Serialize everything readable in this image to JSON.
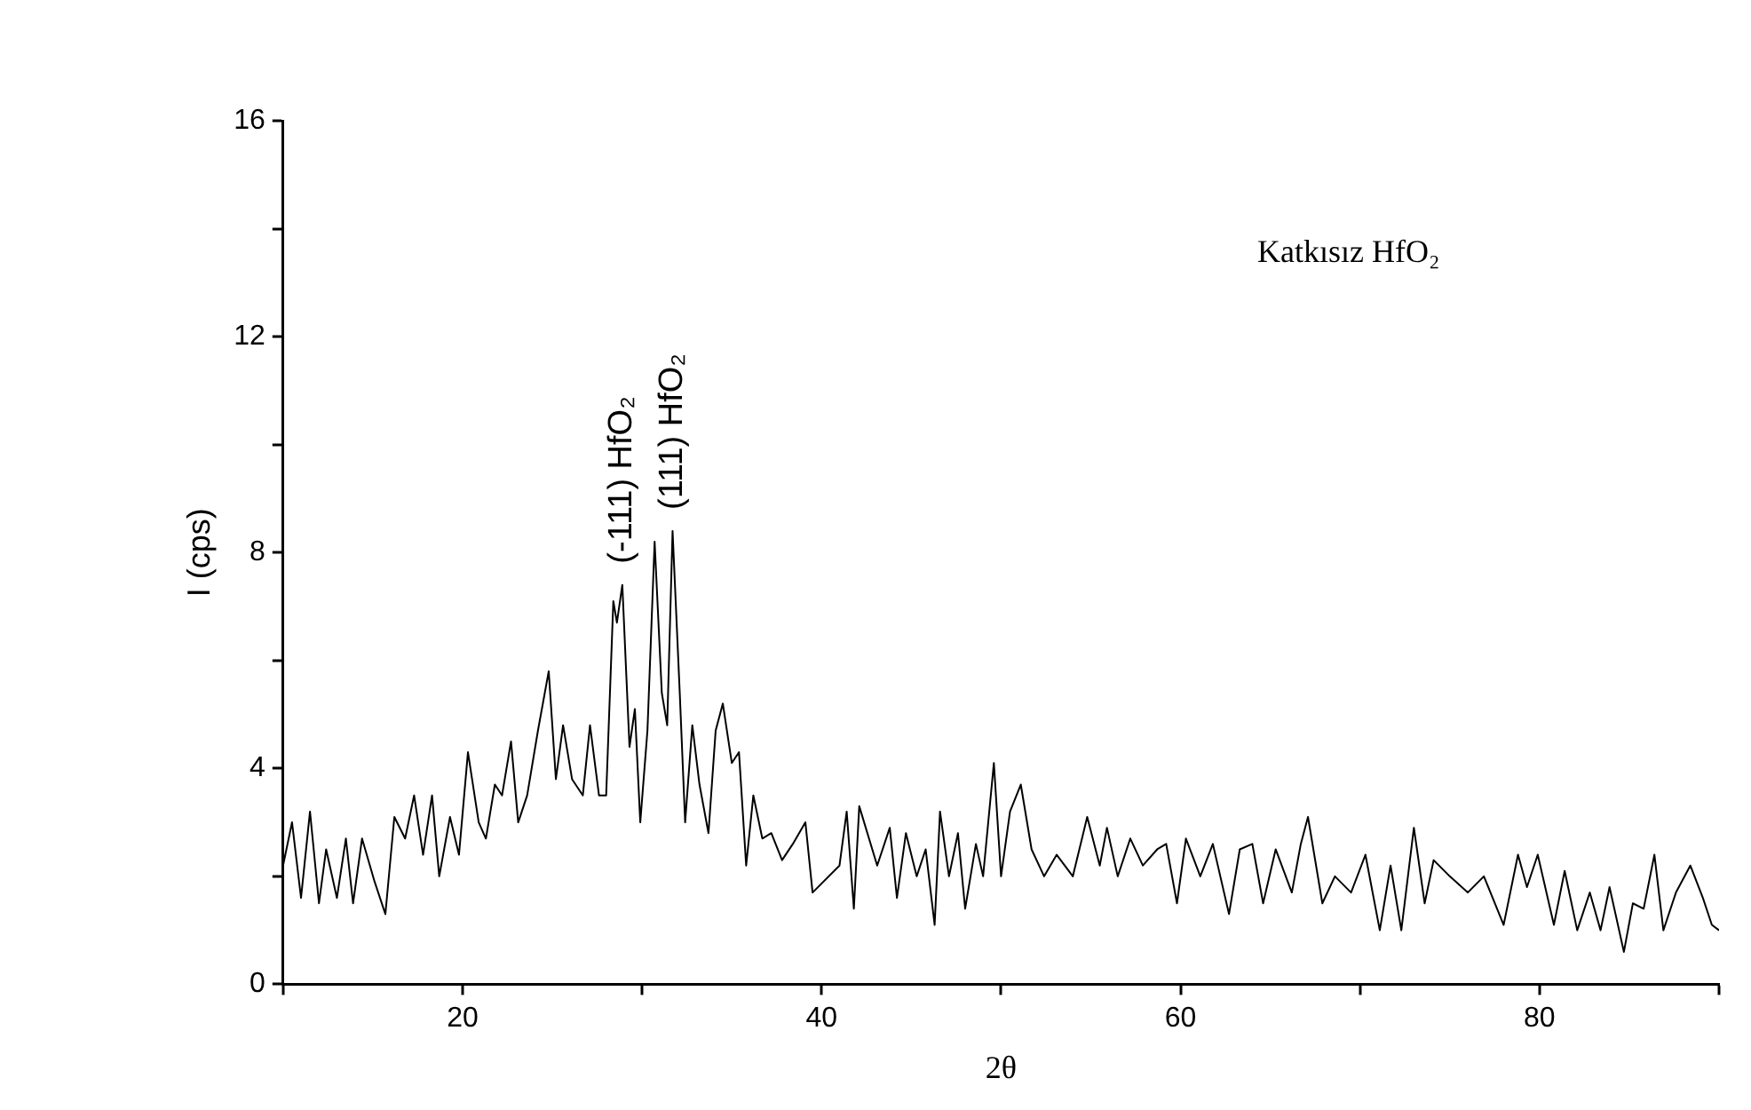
{
  "chart_data": {
    "type": "line",
    "xlabel": "2θ",
    "ylabel": "I (cps)",
    "xlim": [
      10,
      90
    ],
    "xticks": [
      {
        "value": 10,
        "label": null
      },
      20,
      {
        "value": 30,
        "label": null
      },
      40,
      {
        "value": 50,
        "label": null
      },
      60,
      {
        "value": 70,
        "label": null
      },
      80,
      {
        "value": 90,
        "label": null
      }
    ],
    "ylim": [
      0,
      16
    ],
    "yticks": [
      0,
      {
        "value": 2,
        "label": null
      },
      4,
      {
        "value": 6,
        "label": null
      },
      8,
      {
        "value": 10,
        "label": null
      },
      12,
      {
        "value": 14,
        "label": null
      },
      16
    ],
    "grid": false,
    "legend": false,
    "marker": "none",
    "line_style": "solid",
    "annotations": [
      {
        "text": "(-111) HfO₂",
        "x": 28.9,
        "y": 7.4
      },
      {
        "text": "(111) HfO₂",
        "x": 31.7,
        "y": 8.4
      },
      "Katkısız HfO₂"
    ],
    "series": [
      {
        "color": "#000000",
        "x": [
          10.0,
          10.5,
          11.0,
          11.5,
          12.0,
          12.4,
          13.0,
          13.5,
          13.9,
          14.4,
          15.1,
          15.7,
          16.2,
          16.8,
          17.3,
          17.8,
          18.3,
          18.7,
          19.3,
          19.8,
          20.3,
          20.9,
          21.3,
          21.8,
          22.2,
          22.7,
          23.1,
          23.6,
          24.2,
          24.8,
          25.2,
          25.6,
          26.1,
          26.7,
          27.1,
          27.6,
          28.0,
          28.4,
          28.6,
          28.9,
          29.3,
          29.6,
          29.9,
          30.3,
          30.7,
          31.1,
          31.4,
          31.7,
          32.1,
          32.4,
          32.8,
          33.2,
          33.7,
          34.1,
          34.5,
          35.0,
          35.4,
          35.8,
          36.2,
          36.7,
          37.2,
          37.8,
          38.4,
          39.1,
          39.5,
          41.0,
          41.4,
          41.8,
          42.1,
          43.1,
          43.8,
          44.2,
          44.7,
          45.3,
          45.8,
          46.3,
          46.6,
          47.1,
          47.6,
          48.0,
          48.6,
          49.0,
          49.6,
          50.0,
          50.5,
          51.1,
          51.7,
          52.4,
          53.1,
          54.0,
          54.8,
          55.5,
          55.9,
          56.5,
          57.2,
          57.9,
          58.7,
          59.2,
          59.8,
          60.3,
          61.1,
          61.8,
          62.7,
          63.3,
          64.0,
          64.6,
          65.3,
          66.2,
          66.7,
          67.1,
          67.9,
          68.6,
          69.5,
          70.3,
          71.1,
          71.7,
          72.3,
          73.0,
          73.6,
          74.1,
          75.0,
          76.0,
          76.9,
          78.0,
          78.8,
          79.3,
          79.9,
          80.8,
          81.4,
          82.1,
          82.8,
          83.4,
          83.9,
          84.7,
          85.2,
          85.8,
          86.4,
          86.9,
          87.6,
          88.4,
          89.1,
          89.6,
          90.0
        ],
        "values": [
          2.2,
          3.0,
          1.6,
          3.2,
          1.5,
          2.5,
          1.6,
          2.7,
          1.5,
          2.7,
          1.9,
          1.3,
          3.1,
          2.7,
          3.5,
          2.4,
          3.5,
          2.0,
          3.1,
          2.4,
          4.3,
          3.0,
          2.7,
          3.7,
          3.5,
          4.5,
          3.0,
          3.5,
          4.7,
          5.8,
          3.8,
          4.8,
          3.8,
          3.5,
          4.8,
          3.5,
          3.5,
          7.1,
          6.7,
          7.4,
          4.4,
          5.1,
          3.0,
          4.7,
          8.2,
          5.4,
          4.8,
          8.4,
          5.4,
          3.0,
          4.8,
          3.7,
          2.8,
          4.7,
          5.2,
          4.1,
          4.3,
          2.2,
          3.5,
          2.7,
          2.8,
          2.3,
          2.6,
          3.0,
          1.7,
          2.2,
          3.2,
          1.4,
          3.3,
          2.2,
          2.9,
          1.6,
          2.8,
          2.0,
          2.5,
          1.1,
          3.2,
          2.0,
          2.8,
          1.4,
          2.6,
          2.0,
          4.1,
          2.0,
          3.2,
          3.7,
          2.5,
          2.0,
          2.4,
          2.0,
          3.1,
          2.2,
          2.9,
          2.0,
          2.7,
          2.2,
          2.5,
          2.6,
          1.5,
          2.7,
          2.0,
          2.6,
          1.3,
          2.5,
          2.6,
          1.5,
          2.5,
          1.7,
          2.6,
          3.1,
          1.5,
          2.0,
          1.7,
          2.4,
          1.0,
          2.2,
          1.0,
          2.9,
          1.5,
          2.3,
          2.0,
          1.7,
          2.0,
          1.1,
          2.4,
          1.8,
          2.4,
          1.1,
          2.1,
          1.0,
          1.7,
          1.0,
          1.8,
          0.6,
          1.5,
          1.4,
          2.4,
          1.0,
          1.7,
          2.2,
          1.6,
          1.1,
          1.0
        ]
      }
    ]
  }
}
